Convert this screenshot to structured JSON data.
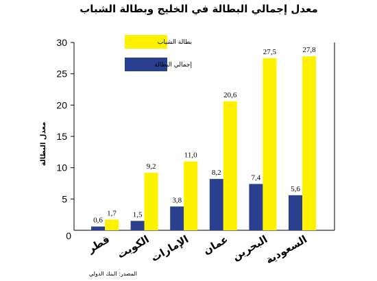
{
  "chart_data": {
    "type": "bar",
    "title": "معدل إجمالي البطالة في الخليج وبطالة الشباب",
    "ylabel": "معدل البطالة",
    "xlabel": "",
    "ylim": [
      0,
      30
    ],
    "yticks": [
      "0",
      "5",
      "10",
      "15",
      "20",
      "25",
      "30"
    ],
    "categories": [
      "قطر",
      "الكويت",
      "الإمارات",
      "عمان",
      "البحرين",
      "السعودية"
    ],
    "series": [
      {
        "name": "إجمالي البطالة",
        "color": "#2b3f8f",
        "values": [
          0.6,
          1.5,
          3.8,
          8.2,
          7.4,
          5.6
        ],
        "labels": [
          "0,6",
          "1,5",
          "3,8",
          "8,2",
          "7,4",
          "5,6"
        ]
      },
      {
        "name": "بطالة الشباب",
        "color": "#fff200",
        "values": [
          1.7,
          9.2,
          11.0,
          20.6,
          27.5,
          27.8
        ],
        "labels": [
          "1,7",
          "9,2",
          "11,0",
          "20,6",
          "27,5",
          "27,8"
        ]
      }
    ],
    "legend": "top-left",
    "grid": false,
    "source": "المصدر: البنك الدولي"
  }
}
